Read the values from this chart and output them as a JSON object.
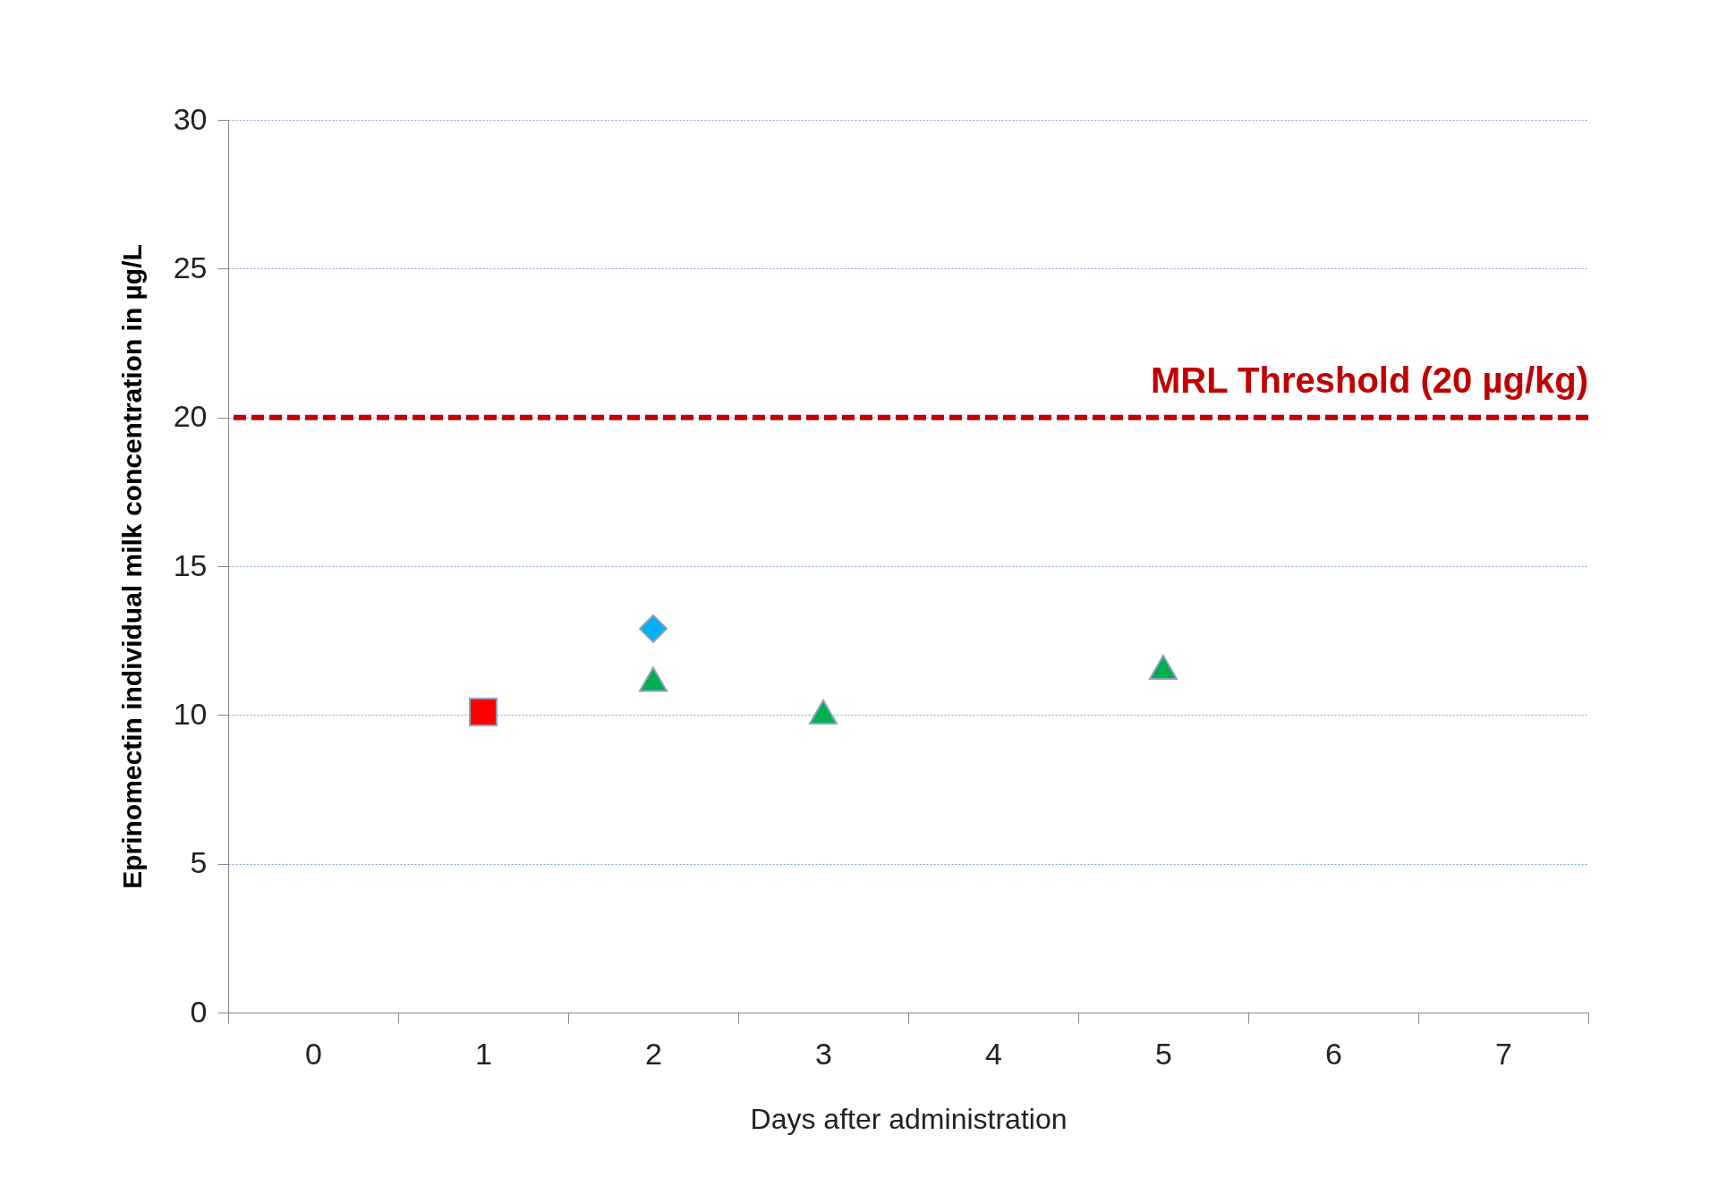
{
  "chart_data": {
    "type": "scatter",
    "xlabel": "Days after administration",
    "ylabel": "Eprinomectin individual milk concentration in µg/L",
    "categories": [
      "0",
      "1",
      "2",
      "3",
      "4",
      "5",
      "6",
      "7"
    ],
    "series": [
      {
        "color": "#ff0000",
        "marker": "square",
        "x": [
          "1"
        ],
        "values": [
          10.1
        ]
      },
      {
        "color": "#00b0f0",
        "marker": "diamond",
        "x": [
          "2"
        ],
        "values": [
          12.9
        ]
      },
      {
        "color": "#00b050",
        "marker": "triangle",
        "x": [
          "2",
          "3",
          "5"
        ],
        "values": [
          11.2,
          10.1,
          11.6
        ]
      }
    ],
    "ylim": [
      0,
      30
    ],
    "yticks": [
      0,
      5,
      10,
      15,
      20,
      25,
      30
    ],
    "grid": "y",
    "ref_lines": [
      {
        "axis": "y",
        "value": 20,
        "label": "MRL Threshold (20 µg/kg)",
        "color": "#c00000",
        "line_style": "dashed"
      }
    ]
  }
}
